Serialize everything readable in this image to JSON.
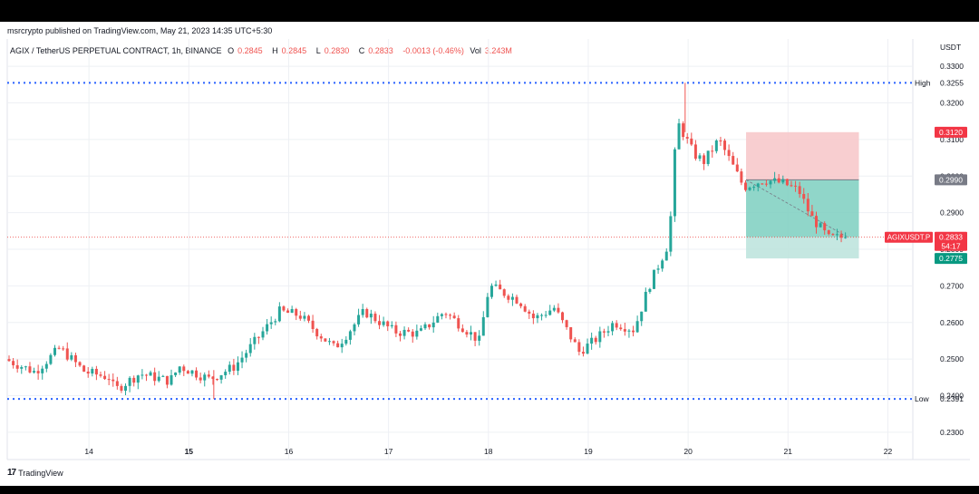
{
  "header": {
    "publisher": "msrcrypto published on TradingView.com, May 21, 2023 14:35 UTC+5:30"
  },
  "legend": {
    "title": "AGIX / TetherUS PERPETUAL CONTRACT, 1h, BINANCE",
    "open_label": "O",
    "open": "0.2845",
    "high_label": "H",
    "high": "0.2845",
    "low_label": "L",
    "low": "0.2830",
    "close_label": "C",
    "close": "0.2833",
    "change": "-0.0013 (-0.46%)",
    "volume_label": "Vol",
    "volume": "3.243M"
  },
  "footer": {
    "brand": "TradingView"
  },
  "colors": {
    "up": "#26a69a",
    "down": "#ef5350",
    "dotted_line": "#2962ff",
    "stop_zone": "#f7c6c8",
    "target_zone": "#7ccfbf",
    "target_zone_light": "#bfe4de"
  },
  "chart_data": {
    "type": "candlestick",
    "symbol": "AGIX / TetherUS PERPETUAL CONTRACT",
    "interval": "1h",
    "exchange": "BINANCE",
    "y_axis_unit": "USDT",
    "ylim": [
      0.2275,
      0.334
    ],
    "xlim": [
      13.2,
      22.25
    ],
    "y_ticks": [
      "0.3300",
      "0.3200",
      "0.3100",
      "0.3000",
      "0.2900",
      "0.2800",
      "0.2700",
      "0.2600",
      "0.2500",
      "0.2400",
      "0.2300"
    ],
    "x_ticks": [
      {
        "label": "14",
        "x": 14.0,
        "bold": false
      },
      {
        "label": "15",
        "x": 15.0,
        "bold": true
      },
      {
        "label": "16",
        "x": 16.0,
        "bold": false
      },
      {
        "label": "17",
        "x": 17.0,
        "bold": false
      },
      {
        "label": "18",
        "x": 18.0,
        "bold": false
      },
      {
        "label": "19",
        "x": 19.0,
        "bold": false
      },
      {
        "label": "20",
        "x": 20.0,
        "bold": false
      },
      {
        "label": "21",
        "x": 21.0,
        "bold": false
      },
      {
        "label": "22",
        "x": 22.0,
        "bold": false
      }
    ],
    "horizontal_levels": [
      {
        "name": "High",
        "value": 0.3255,
        "label": "0.3255"
      },
      {
        "name": "Low",
        "value": 0.2391,
        "label": "0.2391"
      }
    ],
    "price_marker": {
      "symbol": "AGIXUSDT.P",
      "value": 0.2833,
      "label": "0.2833",
      "countdown": "54:17"
    },
    "position_tool": {
      "x_start": 20.58,
      "x_end": 21.71,
      "stop": 0.312,
      "stop_label": "0.3120",
      "entry": 0.299,
      "entry_label": "0.2990",
      "target": 0.2775,
      "target_label": "0.2775"
    },
    "candle_keypoints": [
      [
        13.2,
        0.25
      ],
      [
        13.5,
        0.2465
      ],
      [
        13.75,
        0.253
      ],
      [
        14.0,
        0.2465
      ],
      [
        14.25,
        0.245
      ],
      [
        14.3,
        0.2415
      ],
      [
        14.55,
        0.246
      ],
      [
        14.85,
        0.244
      ],
      [
        14.95,
        0.248
      ],
      [
        15.25,
        0.2445
      ],
      [
        15.5,
        0.248
      ],
      [
        15.65,
        0.253
      ],
      [
        15.95,
        0.263
      ],
      [
        16.15,
        0.262
      ],
      [
        16.3,
        0.258
      ],
      [
        16.5,
        0.253
      ],
      [
        16.6,
        0.256
      ],
      [
        16.8,
        0.263
      ],
      [
        17.1,
        0.2575
      ],
      [
        17.35,
        0.257
      ],
      [
        17.6,
        0.263
      ],
      [
        17.95,
        0.255
      ],
      [
        18.05,
        0.27
      ],
      [
        18.35,
        0.266
      ],
      [
        18.5,
        0.261
      ],
      [
        18.7,
        0.264
      ],
      [
        18.95,
        0.252
      ],
      [
        19.1,
        0.255
      ],
      [
        19.3,
        0.26
      ],
      [
        19.5,
        0.258
      ],
      [
        19.65,
        0.27
      ],
      [
        19.85,
        0.282
      ],
      [
        19.93,
        0.315
      ],
      [
        20.1,
        0.306
      ],
      [
        20.2,
        0.304
      ],
      [
        20.35,
        0.31
      ],
      [
        20.6,
        0.297
      ],
      [
        20.8,
        0.299
      ],
      [
        21.0,
        0.298
      ],
      [
        21.15,
        0.296
      ],
      [
        21.27,
        0.289
      ],
      [
        21.45,
        0.283
      ],
      [
        21.6,
        0.2833
      ]
    ]
  }
}
